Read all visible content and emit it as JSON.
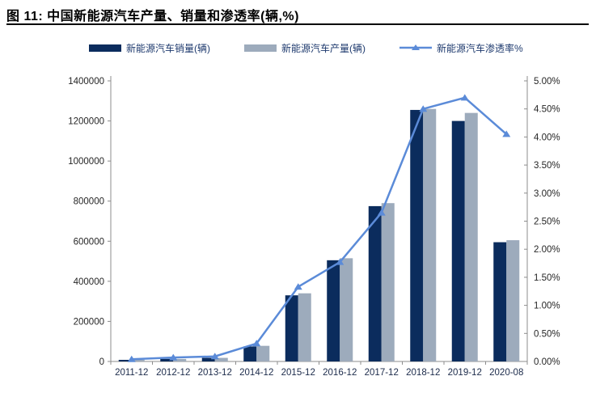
{
  "figure": {
    "title": "图 11:  中国新能源汽车产量、销量和渗透率(辆,%)"
  },
  "chart_data": {
    "type": "bar",
    "subtype": "grouped-bars-with-line",
    "title": "中国新能源汽车产量、销量和渗透率(辆,%)",
    "categories": [
      "2011-12",
      "2012-12",
      "2013-12",
      "2014-12",
      "2015-12",
      "2016-12",
      "2017-12",
      "2018-12",
      "2019-12",
      "2020-08"
    ],
    "series": [
      {
        "name": "新能源汽车销量(辆)",
        "type": "bar",
        "axis": "left",
        "color": "#0b2c5d",
        "values": [
          8000,
          13000,
          18000,
          75000,
          330000,
          505000,
          775000,
          1255000,
          1200000,
          595000
        ]
      },
      {
        "name": "新能源汽车产量(辆)",
        "type": "bar",
        "axis": "left",
        "color": "#9dabbc",
        "values": [
          8500,
          12500,
          18000,
          78000,
          340000,
          515000,
          790000,
          1260000,
          1240000,
          605000
        ]
      },
      {
        "name": "新能源汽车渗透率%",
        "type": "line",
        "axis": "right",
        "color": "#5b8bd8",
        "marker": "triangle-up",
        "values": [
          0.04,
          0.07,
          0.09,
          0.32,
          1.33,
          1.77,
          2.65,
          4.5,
          4.7,
          4.05
        ]
      }
    ],
    "left_axis": {
      "min": 0,
      "max": 1400000,
      "step": 200000,
      "tick_labels": [
        "0",
        "200000",
        "400000",
        "600000",
        "800000",
        "1000000",
        "1200000",
        "1400000"
      ]
    },
    "right_axis": {
      "min": 0,
      "max": 5,
      "step": 0.5,
      "tick_labels": [
        "0.00%",
        "0.50%",
        "1.00%",
        "1.50%",
        "2.00%",
        "2.50%",
        "3.00%",
        "3.50%",
        "4.00%",
        "4.50%",
        "5.00%"
      ]
    },
    "grid": false,
    "legend_position": "top",
    "colors": {
      "axis_line": "#8c8c8c",
      "y_tick_text": "#262626",
      "x_tick_text": "#1b2a4a",
      "legend_text": "#1e3a6e",
      "title_text": "#000000"
    }
  }
}
